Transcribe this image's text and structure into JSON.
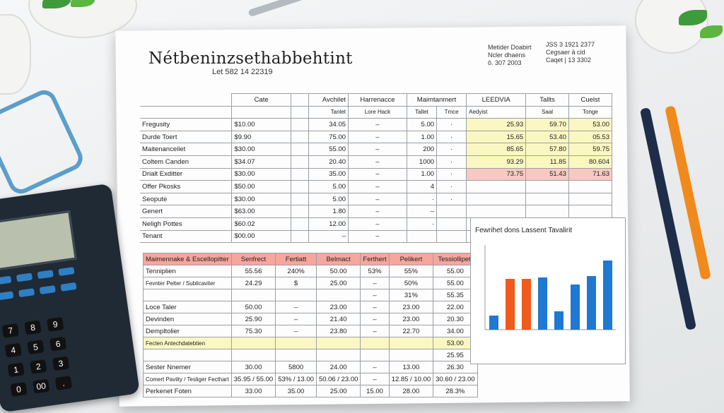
{
  "document": {
    "title": "Nétbeninzsethabbehtint",
    "subtitle": "Let 582 14 22319",
    "meta_left": [
      "Metider Doabirt",
      "Ncler dhaens",
      "ō. 307 2003"
    ],
    "meta_right": [
      "JSS 3 1921 2377",
      "Cegsaer ä cid",
      "Caqet | 13 3302"
    ]
  },
  "table1": {
    "group_headers": [
      "Cate",
      "Avchilet",
      "Harrenacce",
      "Maimtanmert",
      "LEEDVIA",
      "Tallts",
      "Cuelst"
    ],
    "sub_headers": [
      "Tanlet",
      "Lore Hack",
      "Tallet",
      "Tmce",
      "Aedyist",
      "Tenal",
      "Saal",
      "Tonge"
    ],
    "rows": [
      [
        "Fregusity",
        "$10.00",
        "34.05",
        "–",
        "5.00",
        "·",
        "25.93",
        "59.70",
        "53.00"
      ],
      [
        "Durde Toert",
        "$9.90",
        "75.00",
        "–",
        "1.00",
        "·",
        "15.65",
        "53.40",
        "05.53"
      ],
      [
        "Maitenanceilet",
        "$30.00",
        "55.00",
        "–",
        "200",
        "·",
        "85.65",
        "57.80",
        "59.75"
      ],
      [
        "Coltem Canden",
        "$34.07",
        "20.40",
        "–",
        "1000",
        "·",
        "93.29",
        "11.85",
        "80.604"
      ],
      [
        "Drialt Exditter",
        "$30.00",
        "35.00",
        "–",
        "1.00",
        "·",
        "73.75",
        "51.43",
        "71.63"
      ],
      [
        "Offer Pkosks",
        "$50.00",
        "5.00",
        "–",
        "4",
        "·",
        "",
        "",
        ""
      ],
      [
        "Seopute",
        "$30.00",
        "5.00",
        "–",
        "·",
        "·",
        "",
        "",
        ""
      ],
      [
        "Genert",
        "$63.00",
        "1.80",
        "–",
        "–",
        "",
        "",
        "",
        ""
      ],
      [
        "Neligh Pottes",
        "$60.02",
        "12.00",
        "–",
        "·",
        "",
        "",
        "",
        ""
      ],
      [
        "Tenant",
        "$00.00",
        "–",
        "–",
        "",
        "",
        "",
        "",
        ""
      ]
    ]
  },
  "table2": {
    "headers": [
      "Maimennake & Escellopitter",
      "Senfrect",
      "Fertiatt",
      "Belmact",
      "Ferthert",
      "Pelikert",
      "Tessiollipett"
    ],
    "rows": [
      [
        "Tenniplien",
        "55.56",
        "240%",
        "50.00",
        "53%",
        "55%",
        "55.00"
      ],
      [
        "Fevnter Pelter / Sublicaviter",
        "24.29",
        "$",
        "25.00",
        "–",
        "50%",
        "55.00"
      ],
      [
        "",
        "",
        "",
        "",
        "–",
        "31%",
        "55.35"
      ],
      [
        "Loce Taler",
        "50.00",
        "–",
        "23.00",
        "–",
        "23.00",
        "22.00"
      ],
      [
        "Devinden",
        "25.90",
        "–",
        "21.40",
        "–",
        "23.00",
        "20.30"
      ],
      [
        "Dempltolier",
        "75.30",
        "–",
        "23.80",
        "–",
        "22.70",
        "34.00"
      ],
      [
        "Fecten Antechdatebtien",
        "",
        "",
        "",
        "",
        "",
        "53.00"
      ],
      [
        "",
        "",
        "",
        "",
        "",
        "",
        "25.95"
      ],
      [
        "Sester Nnemer",
        "30.00",
        "5800",
        "24.00",
        "–",
        "13.00",
        "26.30"
      ],
      [
        "Comert Paviity / Tesliger Fecthart",
        "35.95 / 55.00",
        "53% / 13.00",
        "50.06 / 23.00",
        "–",
        "12.85 / 10.00",
        "30.60 / 23.00"
      ],
      [
        "Perkenet Foten",
        "33.00",
        "35.00",
        "25.00",
        "15.00",
        "28.00",
        "28.3%"
      ]
    ]
  },
  "chart_data": {
    "type": "bar",
    "title": "Fewrihet dons Lassent Tavalirit",
    "ylim": [
      0,
      6
    ],
    "values": [
      1,
      3.6,
      3.6,
      3.7,
      1.3,
      3.2,
      3.8,
      4.9
    ],
    "colors": [
      "#1f78d1",
      "#f05a1a",
      "#f05a1a",
      "#1f78d1",
      "#1f78d1",
      "#1f78d1",
      "#1f78d1",
      "#1f78d1"
    ]
  }
}
